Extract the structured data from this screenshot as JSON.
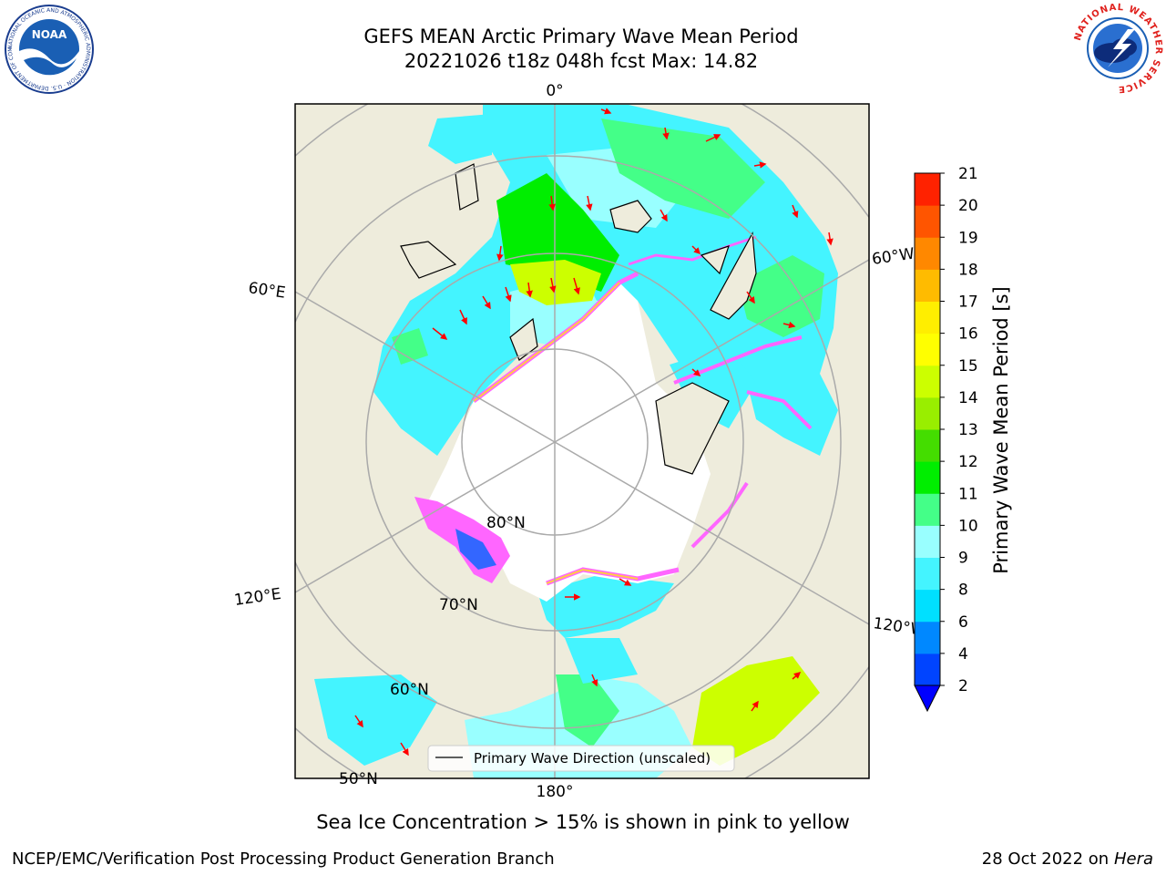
{
  "title": {
    "line1": "GEFS MEAN Arctic Primary Wave Mean Period",
    "line2": "20221026 t18z 048h fcst   Max: 14.82"
  },
  "map": {
    "graticule_labels": {
      "lon_0": "0°",
      "lon_60E": "60°E",
      "lon_60W": "60°W",
      "lon_120E": "120°E",
      "lon_120W": "120°W",
      "lon_180": "180°",
      "lat_80": "80°N",
      "lat_70": "70°N",
      "lat_60": "60°N",
      "lat_50": "50°N"
    },
    "legend_label": "Primary Wave Direction (unscaled)",
    "land_color": "#eeecdc",
    "ice_pink_color": "#ff66ff",
    "ice_yellow_color": "#ffcc44"
  },
  "colorbar": {
    "label": "Primary Wave Mean Period [s]",
    "ticks": [
      "2",
      "4",
      "6",
      "8",
      "9",
      "10",
      "11",
      "12",
      "13",
      "14",
      "15",
      "16",
      "17",
      "18",
      "19",
      "20",
      "21"
    ],
    "colors": [
      "#0044ff",
      "#0088ff",
      "#00e0ff",
      "#44f4ff",
      "#99ffff",
      "#44ff88",
      "#00ee00",
      "#44dd00",
      "#99ee00",
      "#ccff00",
      "#ffff00",
      "#ffee00",
      "#ffbb00",
      "#ff8800",
      "#ff5500",
      "#ff2200"
    ],
    "under_color": "#0000ff"
  },
  "note": "Sea Ice Concentration > 15% is shown in pink to yellow",
  "footer": {
    "left": "NCEP/EMC/Verification Post Processing Product Generation Branch",
    "right_prefix": "28 Oct 2022 on ",
    "right_host": "Hera"
  },
  "logos": {
    "left_text": "NOAA",
    "left_ring": "NATIONAL OCEANIC AND ATMOSPHERIC ADMINISTRATION · U.S. DEPARTMENT OF COMMERCE",
    "right_ring": "NATIONAL WEATHER SERVICE"
  }
}
